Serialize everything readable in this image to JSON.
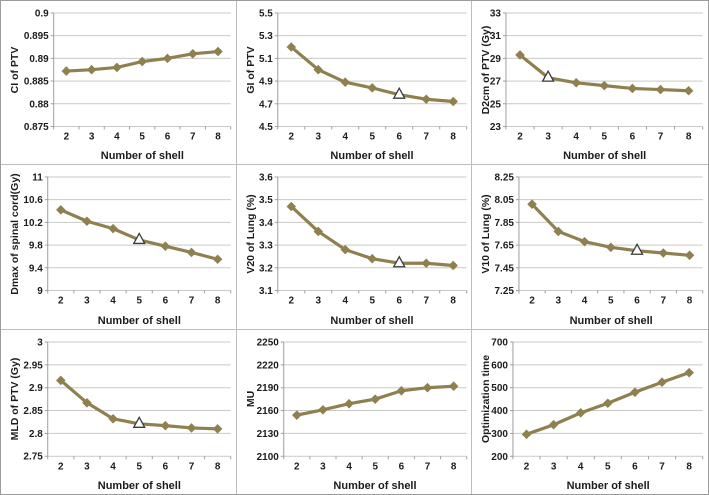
{
  "page": {
    "background": "#ffffff",
    "border_color": "#9b9b9b"
  },
  "style": {
    "line_color": "#8f8050",
    "marker_color": "#8f8050",
    "triangle_fill": "#ffffff",
    "triangle_stroke": "#3a3a3a",
    "gridline_color": "#c9c9c9",
    "axis_color": "#9e9e9e",
    "text_color": "#1c1c1c",
    "cell_border_color": "#bdbdbd"
  },
  "chart_data": [
    {
      "type": "line",
      "marker": "diamond",
      "ylabel": "CI of PTV",
      "xlabel": "Number of shell",
      "x": [
        2,
        3,
        4,
        5,
        6,
        7,
        8
      ],
      "values": [
        0.8872,
        0.8875,
        0.888,
        0.8893,
        0.89,
        0.891,
        0.8915
      ],
      "ylim": [
        0.875,
        0.9
      ],
      "yticks": [
        0.875,
        0.88,
        0.885,
        0.89,
        0.895,
        0.9
      ],
      "ytick_labels": [
        "0.875",
        "0.88",
        "0.885",
        "0.89",
        "0.895",
        "0.9"
      ],
      "triangle_index": null
    },
    {
      "type": "line",
      "marker": "diamond",
      "ylabel": "GI of PTV",
      "xlabel": "Number of shell",
      "x": [
        2,
        3,
        4,
        5,
        6,
        7,
        8
      ],
      "values": [
        5.2,
        5.0,
        4.89,
        4.84,
        4.78,
        4.74,
        4.72
      ],
      "ylim": [
        4.5,
        5.5
      ],
      "yticks": [
        4.5,
        4.7,
        4.9,
        5.1,
        5.3,
        5.5
      ],
      "ytick_labels": [
        "4.5",
        "4.7",
        "4.9",
        "5.1",
        "5.3",
        "5.5"
      ],
      "triangle_index": 4
    },
    {
      "type": "line",
      "marker": "diamond",
      "ylabel": "D2cm of PTV (Gy)",
      "xlabel": "Number of shell",
      "x": [
        2,
        3,
        4,
        5,
        6,
        7,
        8
      ],
      "values": [
        29.3,
        27.3,
        26.85,
        26.6,
        26.35,
        26.25,
        26.15
      ],
      "ylim": [
        23,
        33
      ],
      "yticks": [
        23,
        25,
        27,
        29,
        31,
        33
      ],
      "ytick_labels": [
        "23",
        "25",
        "27",
        "29",
        "31",
        "33"
      ],
      "triangle_index": 1
    },
    {
      "type": "line",
      "marker": "diamond",
      "ylabel": "Dmax of spinal cord(Gy)",
      "xlabel": "Number of shell",
      "x": [
        2,
        3,
        4,
        5,
        6,
        7,
        8
      ],
      "values": [
        10.42,
        10.22,
        10.09,
        9.89,
        9.78,
        9.67,
        9.55
      ],
      "ylim": [
        9,
        11
      ],
      "yticks": [
        9,
        9.4,
        9.8,
        10.2,
        10.6,
        11
      ],
      "ytick_labels": [
        "9",
        "9.4",
        "9.8",
        "10.2",
        "10.6",
        "11"
      ],
      "triangle_index": 3
    },
    {
      "type": "line",
      "marker": "diamond",
      "ylabel": "V20 of Lung (%)",
      "xlabel": "Number of shell",
      "x": [
        2,
        3,
        4,
        5,
        6,
        7,
        8
      ],
      "values": [
        3.47,
        3.36,
        3.28,
        3.24,
        3.22,
        3.22,
        3.21
      ],
      "ylim": [
        3.1,
        3.6
      ],
      "yticks": [
        3.1,
        3.2,
        3.3,
        3.4,
        3.5,
        3.6
      ],
      "ytick_labels": [
        "3.1",
        "3.2",
        "3.3",
        "3.4",
        "3.5",
        "3.6"
      ],
      "triangle_index": 4
    },
    {
      "type": "line",
      "marker": "diamond",
      "ylabel": "V10 of Lung (%)",
      "xlabel": "Number of shell",
      "x": [
        2,
        3,
        4,
        5,
        6,
        7,
        8
      ],
      "values": [
        8.01,
        7.77,
        7.68,
        7.63,
        7.6,
        7.58,
        7.56
      ],
      "ylim": [
        7.25,
        8.25
      ],
      "yticks": [
        7.25,
        7.45,
        7.65,
        7.85,
        8.05,
        8.25
      ],
      "ytick_labels": [
        "7.25",
        "7.45",
        "7.65",
        "7.85",
        "8.05",
        "8.25"
      ],
      "triangle_index": 4
    },
    {
      "type": "line",
      "marker": "diamond",
      "ylabel": "MLD of PTV (Gy)",
      "xlabel": "Number of shell",
      "x": [
        2,
        3,
        4,
        5,
        6,
        7,
        8
      ],
      "values": [
        2.916,
        2.867,
        2.832,
        2.821,
        2.817,
        2.812,
        2.81
      ],
      "ylim": [
        2.75,
        3
      ],
      "yticks": [
        2.75,
        2.8,
        2.85,
        2.9,
        2.95,
        3
      ],
      "ytick_labels": [
        "2.75",
        "2.8",
        "2.85",
        "2.9",
        "2.95",
        "3"
      ],
      "triangle_index": 3
    },
    {
      "type": "line",
      "marker": "diamond",
      "ylabel": "MU",
      "xlabel": "Number of shell",
      "x": [
        2,
        3,
        4,
        5,
        6,
        7,
        8
      ],
      "values": [
        2154,
        2161,
        2169,
        2175,
        2186,
        2190,
        2192
      ],
      "ylim": [
        2100,
        2250
      ],
      "yticks": [
        2100,
        2130,
        2160,
        2190,
        2220,
        2250
      ],
      "ytick_labels": [
        "2100",
        "2130",
        "2160",
        "2190",
        "2220",
        "2250"
      ],
      "triangle_index": null
    },
    {
      "type": "line",
      "marker": "diamond",
      "ylabel": "Optimization time",
      "xlabel": "Number of shell",
      "x": [
        2,
        3,
        4,
        5,
        6,
        7,
        8
      ],
      "values": [
        296,
        338,
        390,
        432,
        480,
        524,
        566
      ],
      "ylim": [
        200,
        700
      ],
      "yticks": [
        200,
        300,
        400,
        500,
        600,
        700
      ],
      "ytick_labels": [
        "200",
        "300",
        "400",
        "500",
        "600",
        "700"
      ],
      "triangle_index": null
    }
  ]
}
